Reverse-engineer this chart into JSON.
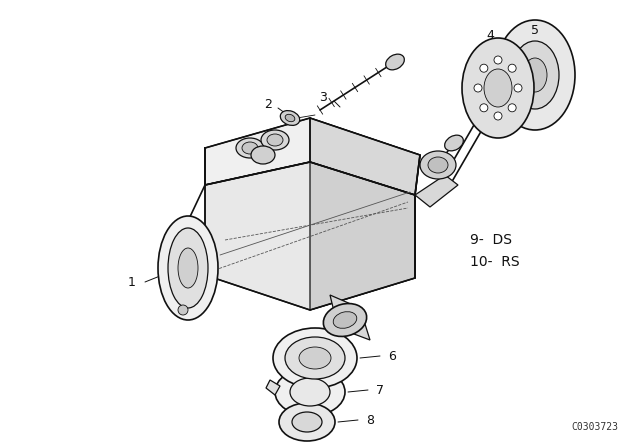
{
  "background_color": "#ffffff",
  "catalog_number": "C0303723",
  "label_fontsize": 9,
  "catalog_fontsize": 7,
  "line_color": "#111111",
  "fill_light": "#f5f5f5",
  "fill_mid": "#e0e0e0",
  "fill_dark": "#c8c8c8"
}
